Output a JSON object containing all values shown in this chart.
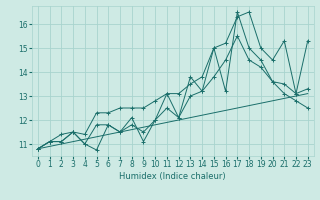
{
  "xlabel": "Humidex (Indice chaleur)",
  "bg_color": "#ceeae4",
  "grid_color": "#a8d4ce",
  "line_color": "#1a6e6a",
  "xlim": [
    -0.5,
    23.5
  ],
  "ylim": [
    10.5,
    16.75
  ],
  "xticks": [
    0,
    1,
    2,
    3,
    4,
    5,
    6,
    7,
    8,
    9,
    10,
    11,
    12,
    13,
    14,
    15,
    16,
    17,
    18,
    19,
    20,
    21,
    22,
    23
  ],
  "yticks": [
    11,
    12,
    13,
    14,
    15,
    16
  ],
  "series_zigzag": {
    "x": [
      0,
      1,
      2,
      3,
      4,
      5,
      6,
      7,
      8,
      9,
      10,
      11,
      12,
      13,
      14,
      15,
      16,
      17,
      18,
      19,
      20,
      21,
      22,
      23
    ],
    "y": [
      10.8,
      11.1,
      11.1,
      11.5,
      11.0,
      10.75,
      11.8,
      11.5,
      12.1,
      11.1,
      12.0,
      13.1,
      12.1,
      13.8,
      13.2,
      15.0,
      13.2,
      16.5,
      15.0,
      14.5,
      13.6,
      13.1,
      12.8,
      12.5
    ]
  },
  "series_upper": {
    "x": [
      0,
      1,
      2,
      3,
      4,
      5,
      6,
      7,
      8,
      9,
      10,
      11,
      12,
      13,
      14,
      15,
      16,
      17,
      18,
      19,
      20,
      21,
      22,
      23
    ],
    "y": [
      10.8,
      11.1,
      11.4,
      11.5,
      11.4,
      12.3,
      12.3,
      12.5,
      12.5,
      12.5,
      12.8,
      13.1,
      13.1,
      13.5,
      13.8,
      15.0,
      15.2,
      16.3,
      16.5,
      15.0,
      14.5,
      15.3,
      13.1,
      15.3
    ]
  },
  "series_middle": {
    "x": [
      0,
      1,
      2,
      3,
      4,
      5,
      6,
      7,
      8,
      9,
      10,
      11,
      12,
      13,
      14,
      15,
      16,
      17,
      18,
      19,
      20,
      21,
      22,
      23
    ],
    "y": [
      10.8,
      11.1,
      11.1,
      11.5,
      11.0,
      11.8,
      11.8,
      11.5,
      11.8,
      11.5,
      12.0,
      12.5,
      12.1,
      13.0,
      13.2,
      13.8,
      14.5,
      15.5,
      14.5,
      14.2,
      13.6,
      13.5,
      13.1,
      13.3
    ]
  },
  "series_linear": {
    "x": [
      0,
      23
    ],
    "y": [
      10.8,
      13.1
    ]
  }
}
